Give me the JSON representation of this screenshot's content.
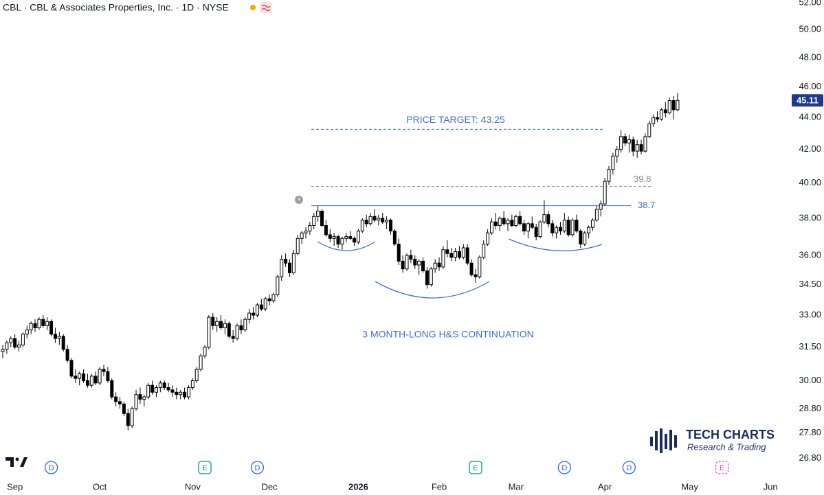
{
  "chart_data": {
    "type": "candlestick",
    "title": "CBL · CBL & Associates Properties, Inc. · 1D · NYSE",
    "log_scale": true,
    "ylim": [
      26.07,
      52.21
    ],
    "yticks": [
      {
        "value": 52,
        "label": "52.00"
      },
      {
        "value": 50,
        "label": "50.00"
      },
      {
        "value": 48,
        "label": "48.00"
      },
      {
        "value": 46,
        "label": "46.00"
      },
      {
        "value": 44,
        "label": "44.00"
      },
      {
        "value": 42,
        "label": "42.00"
      },
      {
        "value": 40,
        "label": "40.00"
      },
      {
        "value": 38,
        "label": "38.00"
      },
      {
        "value": 36,
        "label": "36.00"
      },
      {
        "value": 34.5,
        "label": "34.50"
      },
      {
        "value": 33,
        "label": "33.00"
      },
      {
        "value": 31.5,
        "label": "31.50"
      },
      {
        "value": 30,
        "label": "30.00"
      },
      {
        "value": 28.8,
        "label": "28.80"
      },
      {
        "value": 27.8,
        "label": "27.80"
      },
      {
        "value": 26.8,
        "label": "26.80"
      }
    ],
    "xticks": [
      {
        "value": 3,
        "label": "Sep"
      },
      {
        "value": 24,
        "label": "Oct"
      },
      {
        "value": 47,
        "label": "Nov"
      },
      {
        "value": 66,
        "label": "Dec"
      },
      {
        "value": 88,
        "label": "2026"
      },
      {
        "value": 108,
        "label": "Feb"
      },
      {
        "value": 127,
        "label": "Mar"
      },
      {
        "value": 149,
        "label": "Apr"
      },
      {
        "value": 170,
        "label": "May"
      },
      {
        "value": 190,
        "label": "Jun"
      }
    ],
    "last_price": 45.11,
    "up_color": "#ffffff",
    "down_color": "#000000",
    "candles": [
      [
        31.3,
        31.6,
        31.0,
        31.4
      ],
      [
        31.4,
        31.8,
        31.2,
        31.7
      ],
      [
        31.7,
        32.0,
        31.5,
        31.9
      ],
      [
        31.9,
        32.1,
        31.4,
        31.5
      ],
      [
        31.5,
        31.8,
        31.3,
        31.6
      ],
      [
        31.6,
        32.2,
        31.5,
        32.1
      ],
      [
        32.1,
        32.5,
        31.9,
        32.3
      ],
      [
        32.3,
        32.7,
        32.1,
        32.6
      ],
      [
        32.6,
        32.8,
        32.2,
        32.4
      ],
      [
        32.4,
        32.9,
        32.3,
        32.8
      ],
      [
        32.8,
        33.0,
        32.4,
        32.5
      ],
      [
        32.5,
        32.9,
        32.3,
        32.7
      ],
      [
        32.7,
        32.8,
        32.0,
        32.1
      ],
      [
        32.1,
        32.4,
        31.7,
        31.9
      ],
      [
        31.9,
        32.2,
        31.6,
        32.0
      ],
      [
        32.0,
        32.1,
        31.3,
        31.4
      ],
      [
        31.4,
        31.6,
        30.8,
        30.9
      ],
      [
        30.9,
        31.0,
        30.1,
        30.2
      ],
      [
        30.2,
        30.5,
        29.9,
        30.1
      ],
      [
        30.1,
        30.4,
        29.8,
        30.3
      ],
      [
        30.3,
        30.5,
        29.9,
        30.0
      ],
      [
        30.0,
        30.3,
        29.7,
        29.8
      ],
      [
        29.8,
        30.3,
        29.7,
        30.2
      ],
      [
        30.2,
        30.4,
        29.8,
        29.9
      ],
      [
        29.9,
        30.6,
        29.8,
        30.5
      ],
      [
        30.5,
        30.7,
        30.2,
        30.4
      ],
      [
        30.4,
        30.6,
        29.9,
        30.0
      ],
      [
        30.0,
        30.1,
        29.2,
        29.3
      ],
      [
        29.3,
        29.5,
        28.9,
        29.1
      ],
      [
        29.1,
        29.3,
        28.8,
        29.0
      ],
      [
        29.0,
        29.1,
        28.5,
        28.6
      ],
      [
        28.6,
        28.8,
        27.9,
        28.1
      ],
      [
        28.1,
        28.9,
        28.0,
        28.8
      ],
      [
        28.8,
        29.6,
        28.7,
        29.4
      ],
      [
        29.4,
        29.7,
        29.0,
        29.2
      ],
      [
        29.2,
        29.4,
        28.9,
        29.3
      ],
      [
        29.3,
        29.9,
        29.2,
        29.8
      ],
      [
        29.8,
        30.0,
        29.4,
        29.5
      ],
      [
        29.5,
        29.8,
        29.3,
        29.7
      ],
      [
        29.7,
        30.0,
        29.5,
        29.9
      ],
      [
        29.9,
        30.0,
        29.6,
        29.7
      ],
      [
        29.7,
        29.9,
        29.5,
        29.6
      ],
      [
        29.6,
        29.8,
        29.3,
        29.5
      ],
      [
        29.5,
        29.7,
        29.2,
        29.4
      ],
      [
        29.4,
        29.6,
        29.2,
        29.5
      ],
      [
        29.5,
        29.7,
        29.2,
        29.3
      ],
      [
        29.3,
        29.8,
        29.2,
        29.7
      ],
      [
        29.7,
        30.1,
        29.6,
        30.0
      ],
      [
        30.0,
        30.6,
        29.9,
        30.5
      ],
      [
        30.5,
        31.2,
        30.4,
        31.1
      ],
      [
        31.1,
        31.6,
        31.0,
        31.5
      ],
      [
        31.5,
        33.0,
        31.4,
        32.9
      ],
      [
        32.9,
        33.1,
        32.3,
        32.5
      ],
      [
        32.5,
        32.9,
        32.2,
        32.7
      ],
      [
        32.7,
        33.0,
        32.3,
        32.4
      ],
      [
        32.4,
        32.8,
        32.1,
        32.6
      ],
      [
        32.6,
        32.7,
        31.9,
        32.0
      ],
      [
        32.0,
        32.3,
        31.7,
        31.9
      ],
      [
        31.9,
        32.6,
        31.8,
        32.5
      ],
      [
        32.5,
        32.8,
        32.1,
        32.3
      ],
      [
        32.3,
        32.9,
        32.2,
        32.8
      ],
      [
        32.8,
        33.3,
        32.6,
        33.1
      ],
      [
        33.1,
        33.4,
        32.8,
        33.0
      ],
      [
        33.0,
        33.6,
        32.9,
        33.5
      ],
      [
        33.5,
        33.8,
        33.2,
        33.3
      ],
      [
        33.3,
        33.9,
        33.2,
        33.8
      ],
      [
        33.8,
        34.0,
        33.5,
        33.7
      ],
      [
        33.7,
        34.1,
        33.6,
        34.0
      ],
      [
        34.0,
        35.0,
        33.9,
        34.9
      ],
      [
        34.9,
        36.0,
        34.7,
        35.8
      ],
      [
        35.8,
        36.1,
        35.4,
        35.6
      ],
      [
        35.6,
        35.8,
        34.9,
        35.1
      ],
      [
        35.1,
        36.3,
        35.0,
        36.1
      ],
      [
        36.1,
        37.1,
        36.0,
        36.9
      ],
      [
        36.9,
        37.3,
        36.6,
        37.2
      ],
      [
        37.2,
        37.5,
        36.9,
        37.3
      ],
      [
        37.3,
        37.8,
        37.1,
        37.6
      ],
      [
        37.6,
        38.3,
        37.4,
        38.1
      ],
      [
        38.1,
        38.7,
        37.8,
        38.4
      ],
      [
        38.4,
        38.5,
        37.5,
        37.6
      ],
      [
        37.6,
        37.9,
        37.0,
        37.1
      ],
      [
        37.1,
        37.4,
        36.7,
        36.9
      ],
      [
        36.9,
        37.2,
        36.5,
        37.0
      ],
      [
        37.0,
        37.1,
        36.4,
        36.6
      ],
      [
        36.6,
        37.0,
        36.3,
        36.9
      ],
      [
        36.9,
        37.2,
        36.7,
        37.0
      ],
      [
        37.0,
        37.3,
        36.8,
        36.9
      ],
      [
        36.9,
        37.0,
        36.5,
        36.7
      ],
      [
        36.7,
        37.4,
        36.6,
        37.3
      ],
      [
        37.3,
        38.0,
        37.2,
        37.9
      ],
      [
        37.9,
        38.2,
        37.5,
        37.7
      ],
      [
        37.7,
        38.3,
        37.6,
        38.1
      ],
      [
        38.1,
        38.5,
        37.8,
        37.9
      ],
      [
        37.9,
        38.2,
        37.6,
        38.0
      ],
      [
        38.0,
        38.3,
        37.7,
        37.8
      ],
      [
        37.8,
        38.1,
        37.4,
        37.9
      ],
      [
        37.9,
        38.0,
        37.1,
        37.3
      ],
      [
        37.3,
        37.4,
        36.5,
        36.6
      ],
      [
        36.6,
        36.9,
        35.5,
        35.7
      ],
      [
        35.7,
        36.0,
        35.1,
        35.3
      ],
      [
        35.3,
        36.1,
        35.2,
        36.0
      ],
      [
        36.0,
        36.3,
        35.6,
        35.8
      ],
      [
        35.8,
        36.0,
        35.3,
        35.5
      ],
      [
        35.5,
        35.8,
        35.0,
        35.7
      ],
      [
        35.7,
        35.9,
        35.1,
        35.2
      ],
      [
        35.2,
        35.4,
        34.3,
        34.5
      ],
      [
        34.5,
        35.4,
        34.4,
        35.3
      ],
      [
        35.3,
        35.8,
        35.1,
        35.6
      ],
      [
        35.6,
        35.9,
        35.2,
        35.4
      ],
      [
        35.4,
        36.5,
        35.3,
        36.3
      ],
      [
        36.3,
        36.8,
        35.9,
        36.1
      ],
      [
        36.1,
        36.4,
        35.7,
        35.9
      ],
      [
        35.9,
        36.4,
        35.7,
        36.2
      ],
      [
        36.2,
        36.5,
        35.8,
        35.9
      ],
      [
        35.9,
        36.6,
        35.8,
        36.4
      ],
      [
        36.4,
        36.6,
        35.5,
        35.6
      ],
      [
        35.6,
        35.8,
        34.9,
        35.0
      ],
      [
        35.0,
        35.3,
        34.6,
        34.9
      ],
      [
        34.9,
        36.0,
        34.8,
        35.9
      ],
      [
        35.9,
        36.8,
        35.8,
        36.6
      ],
      [
        36.6,
        37.4,
        36.5,
        37.2
      ],
      [
        37.2,
        38.0,
        37.1,
        37.8
      ],
      [
        37.8,
        38.3,
        37.4,
        37.6
      ],
      [
        37.6,
        38.1,
        37.3,
        38.0
      ],
      [
        38.0,
        38.4,
        37.6,
        37.7
      ],
      [
        37.7,
        38.0,
        37.3,
        37.9
      ],
      [
        37.9,
        38.2,
        37.5,
        37.6
      ],
      [
        37.6,
        38.2,
        37.5,
        38.1
      ],
      [
        38.1,
        38.4,
        37.6,
        37.7
      ],
      [
        37.7,
        37.9,
        37.1,
        37.3
      ],
      [
        37.3,
        37.8,
        36.9,
        37.7
      ],
      [
        37.7,
        38.1,
        37.4,
        37.5
      ],
      [
        37.5,
        37.7,
        36.8,
        37.0
      ],
      [
        37.0,
        37.9,
        36.9,
        37.8
      ],
      [
        37.8,
        39.0,
        37.7,
        38.2
      ],
      [
        38.2,
        38.4,
        37.5,
        37.7
      ],
      [
        37.7,
        37.9,
        37.0,
        37.2
      ],
      [
        37.2,
        37.6,
        36.9,
        37.5
      ],
      [
        37.5,
        37.8,
        37.1,
        37.3
      ],
      [
        37.3,
        38.3,
        37.2,
        37.9
      ],
      [
        37.9,
        38.1,
        37.0,
        37.1
      ],
      [
        37.1,
        38.0,
        37.0,
        37.9
      ],
      [
        37.9,
        38.2,
        37.2,
        37.3
      ],
      [
        37.3,
        37.4,
        36.4,
        36.6
      ],
      [
        36.6,
        37.3,
        36.5,
        37.2
      ],
      [
        37.2,
        37.6,
        36.9,
        37.5
      ],
      [
        37.5,
        38.0,
        37.3,
        37.9
      ],
      [
        37.9,
        38.7,
        37.8,
        38.5
      ],
      [
        38.5,
        39.0,
        38.1,
        38.8
      ],
      [
        38.8,
        40.3,
        38.7,
        40.1
      ],
      [
        40.1,
        41.0,
        39.9,
        40.8
      ],
      [
        40.8,
        41.8,
        40.5,
        41.6
      ],
      [
        41.6,
        42.2,
        41.2,
        42.0
      ],
      [
        42.0,
        43.2,
        41.8,
        42.8
      ],
      [
        42.8,
        43.0,
        42.2,
        42.4
      ],
      [
        42.4,
        42.9,
        41.8,
        42.6
      ],
      [
        42.6,
        42.8,
        41.6,
        41.9
      ],
      [
        41.9,
        42.6,
        41.5,
        42.3
      ],
      [
        42.3,
        42.6,
        41.7,
        41.9
      ],
      [
        41.9,
        43.0,
        41.8,
        42.8
      ],
      [
        42.8,
        43.8,
        42.7,
        43.6
      ],
      [
        43.6,
        44.2,
        43.4,
        44.0
      ],
      [
        44.0,
        44.4,
        43.7,
        43.9
      ],
      [
        43.9,
        44.6,
        43.8,
        44.5
      ],
      [
        44.5,
        45.0,
        44.0,
        44.3
      ],
      [
        44.3,
        45.3,
        44.2,
        45.1
      ],
      [
        45.1,
        45.4,
        43.9,
        44.5
      ],
      [
        44.5,
        45.6,
        44.4,
        45.11
      ]
    ],
    "annotations": [
      {
        "text": "PRICE TARGET: 43.25",
        "value": 43.25,
        "style": "dashed",
        "color": "#3d6be0"
      },
      {
        "text": "39.8",
        "value": 39.8,
        "style": "dashed",
        "color": "#8a8a8a"
      },
      {
        "text": "38.7",
        "value": 38.7,
        "style": "solid",
        "color": "#3d6be0"
      },
      {
        "text": "3 MONTH-LONG H&S CONTINUATION",
        "color": "#3d6be0"
      }
    ],
    "events": [
      {
        "label": "D",
        "x": 12,
        "color": "#2962ff"
      },
      {
        "label": "E",
        "x": 50,
        "color": "#089981"
      },
      {
        "label": "D",
        "x": 63,
        "color": "#2962ff"
      },
      {
        "label": "E",
        "x": 117,
        "color": "#089981"
      },
      {
        "label": "D",
        "x": 139,
        "color": "#2962ff"
      },
      {
        "label": "D",
        "x": 155,
        "color": "#2962ff"
      },
      {
        "label": "E",
        "x": 178,
        "color": "#e040fb"
      }
    ]
  },
  "logo": {
    "title": "TECH CHARTS",
    "subtitle": "Research & Trading"
  }
}
